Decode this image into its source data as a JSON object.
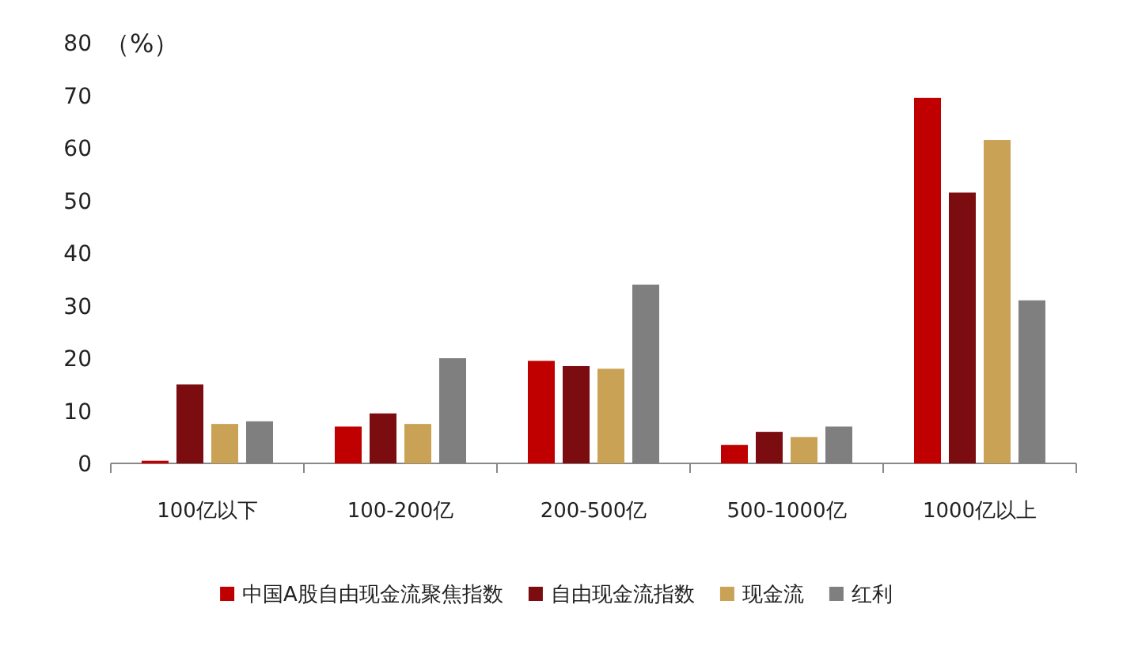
{
  "chart_data": {
    "type": "bar",
    "ylabel": "（%）",
    "categories": [
      "100亿以下",
      "100-200亿",
      "200-500亿",
      "500-1000亿",
      "1000亿以上"
    ],
    "series": [
      {
        "name": "中国A股自由现金流聚焦指数",
        "color": "#c00000",
        "values": [
          0.5,
          7,
          19.5,
          3.5,
          69.5
        ]
      },
      {
        "name": "自由现金流指数",
        "color": "#7b0c10",
        "values": [
          15,
          9.5,
          18.5,
          6,
          51.5
        ]
      },
      {
        "name": "现金流",
        "color": "#c9a256",
        "values": [
          7.5,
          7.5,
          18,
          5,
          61.5
        ]
      },
      {
        "name": "红利",
        "color": "#7f7f7f",
        "values": [
          8,
          20,
          34,
          7,
          31
        ]
      }
    ],
    "ylim": [
      0,
      80
    ],
    "yticks": [
      0,
      10,
      20,
      30,
      40,
      50,
      60,
      70,
      80
    ],
    "legend": "bottom"
  }
}
